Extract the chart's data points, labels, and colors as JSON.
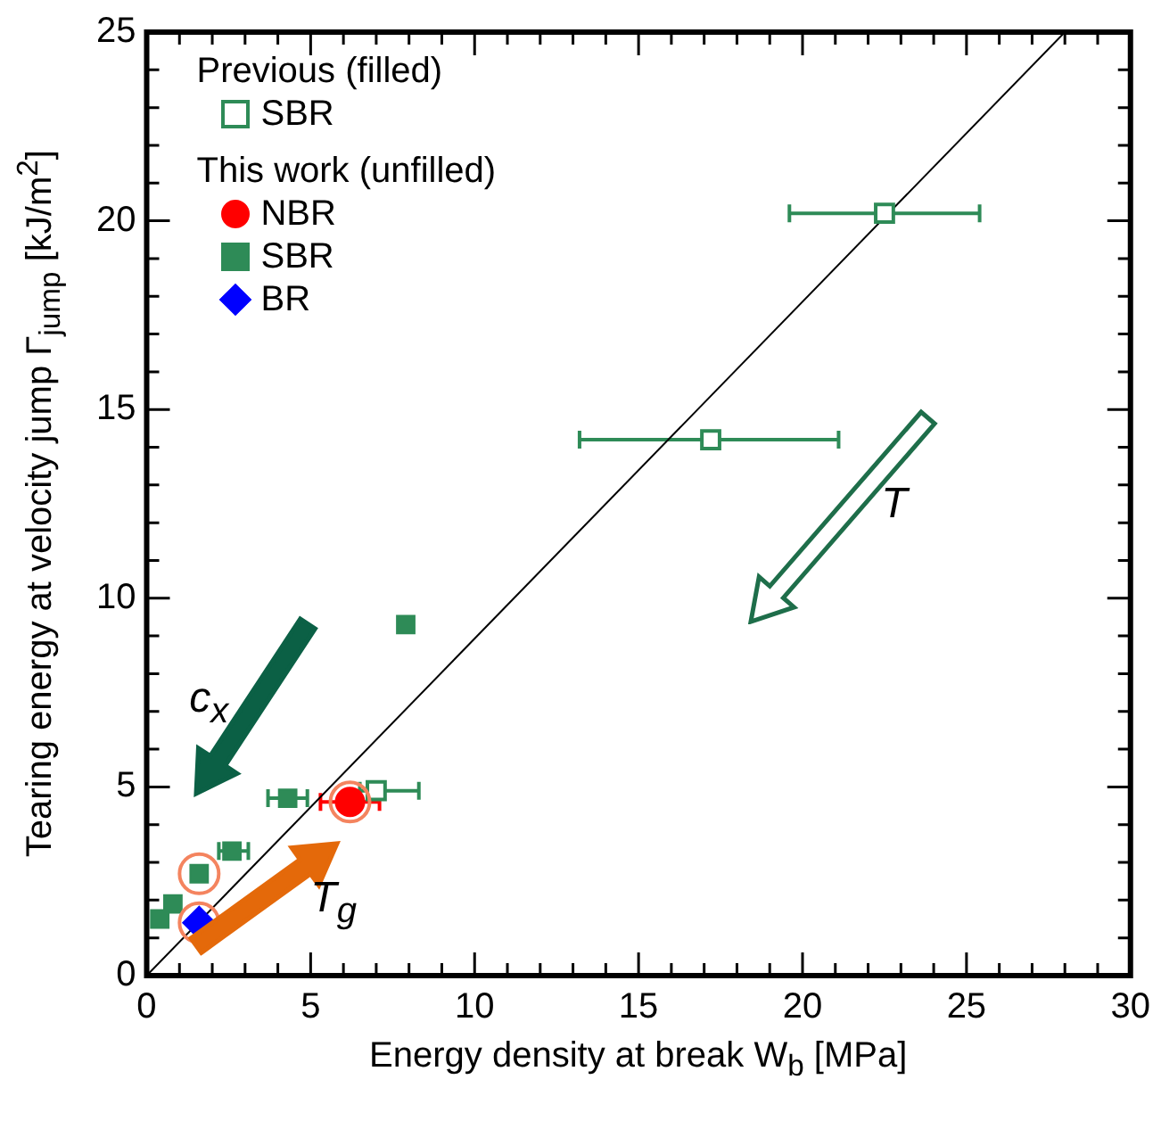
{
  "chart_data": {
    "type": "scatter",
    "xlabel": "Energy density at break W$_{b}$ [MPa]",
    "ylabel": "Tearing energy at velocity jump Γ$_{jump}$ [kJ/m$^{2}$]",
    "annotations": [
      "Previous (filled)",
      "This work (unfilled)",
      "c$_{x}$",
      "T",
      "T$_{g}$"
    ],
    "xlim": [
      0,
      30
    ],
    "ylim": [
      0,
      25
    ],
    "xticks": [
      0,
      {
        "value": 1,
        "label": null
      },
      {
        "value": 2,
        "label": null
      },
      {
        "value": 3,
        "label": null
      },
      {
        "value": 4,
        "label": null
      },
      5,
      {
        "value": 6,
        "label": null
      },
      {
        "value": 7,
        "label": null
      },
      {
        "value": 8,
        "label": null
      },
      {
        "value": 9,
        "label": null
      },
      10,
      {
        "value": 11,
        "label": null
      },
      {
        "value": 12,
        "label": null
      },
      {
        "value": 13,
        "label": null
      },
      {
        "value": 14,
        "label": null
      },
      15,
      {
        "value": 16,
        "label": null
      },
      {
        "value": 17,
        "label": null
      },
      {
        "value": 18,
        "label": null
      },
      {
        "value": 19,
        "label": null
      },
      20,
      {
        "value": 21,
        "label": null
      },
      {
        "value": 22,
        "label": null
      },
      {
        "value": 23,
        "label": null
      },
      {
        "value": 24,
        "label": null
      },
      25,
      {
        "value": 26,
        "label": null
      },
      {
        "value": 27,
        "label": null
      },
      {
        "value": 28,
        "label": null
      },
      {
        "value": 29,
        "label": null
      },
      30
    ],
    "yticks": [
      0,
      {
        "value": 1,
        "label": null
      },
      {
        "value": 2,
        "label": null
      },
      {
        "value": 3,
        "label": null
      },
      {
        "value": 4,
        "label": null
      },
      5,
      {
        "value": 6,
        "label": null
      },
      {
        "value": 7,
        "label": null
      },
      {
        "value": 8,
        "label": null
      },
      {
        "value": 9,
        "label": null
      },
      10,
      {
        "value": 11,
        "label": null
      },
      {
        "value": 12,
        "label": null
      },
      {
        "value": 13,
        "label": null
      },
      {
        "value": 14,
        "label": null
      },
      15,
      {
        "value": 16,
        "label": null
      },
      {
        "value": 17,
        "label": null
      },
      {
        "value": 18,
        "label": null
      },
      {
        "value": 19,
        "label": null
      },
      20,
      {
        "value": 21,
        "label": null
      },
      {
        "value": 22,
        "label": null
      },
      {
        "value": 23,
        "label": null
      },
      {
        "value": 24,
        "label": null
      },
      25
    ],
    "grid": false,
    "legend": "top left",
    "series": [
      {
        "name": "SBR",
        "color": "#2e8b57",
        "marker": "square",
        "x": [
          22.5,
          17.2,
          7.0
        ],
        "values": [
          20.2,
          14.2,
          4.9
        ],
        "xerrors": [
          [
            19.6,
            25.4
          ],
          [
            13.2,
            21.1
          ],
          [
            6.5,
            8.3
          ]
        ]
      },
      {
        "name": "NBR",
        "color": "#ff0000",
        "marker": "circle",
        "x": [
          6.2
        ],
        "values": [
          4.6
        ],
        "xerrors": [
          [
            5.3,
            7.1
          ]
        ]
      },
      {
        "name": "SBR",
        "color": "#2e8b57",
        "marker": "square",
        "x": [
          7.9,
          4.3,
          2.6,
          1.6,
          0.8,
          0.4
        ],
        "values": [
          9.3,
          4.7,
          3.3,
          2.7,
          1.9,
          1.5
        ],
        "xerrors": [
          null,
          [
            3.7,
            4.9
          ],
          [
            2.2,
            3.1
          ],
          null,
          null,
          null
        ]
      },
      {
        "name": "BR",
        "color": "#0000ff",
        "marker": "diamond",
        "x": [
          1.6
        ],
        "values": [
          1.4
        ]
      },
      {
        "color": "#f4845f",
        "marker": "circle",
        "x": [
          1.6,
          1.6,
          6.2
        ],
        "values": [
          2.7,
          1.4,
          4.6
        ]
      },
      {
        "type": "line",
        "color": "#000000",
        "marker": "none",
        "x": [
          0,
          28
        ],
        "values": [
          0,
          25
        ]
      }
    ]
  }
}
